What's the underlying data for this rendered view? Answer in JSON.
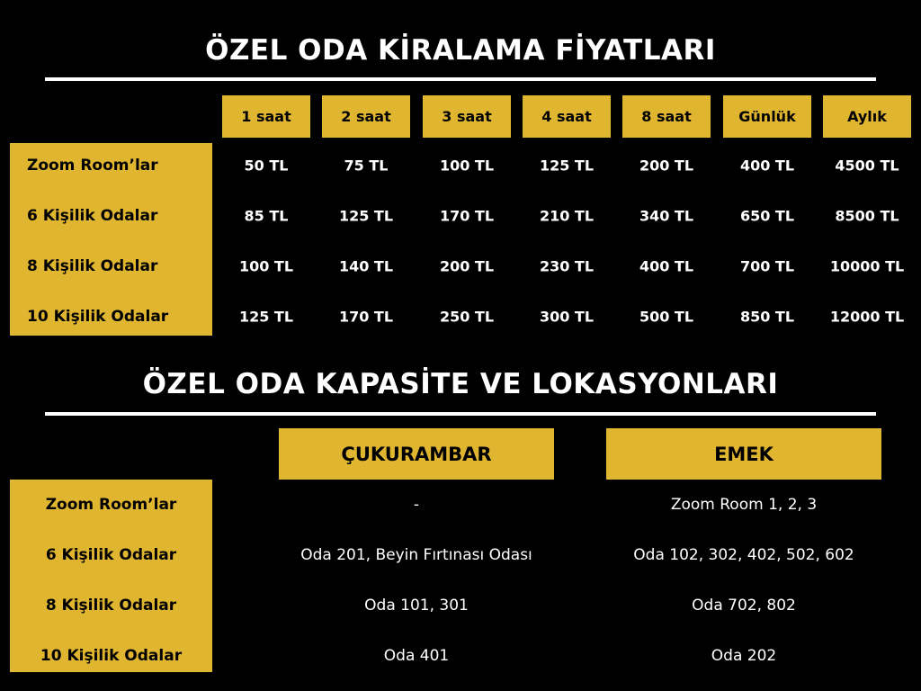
{
  "colors": {
    "accent": "#E0B52F",
    "background": "#000000",
    "text": "#ffffff"
  },
  "pricing": {
    "title": "ÖZEL ODA KİRALAMA FİYATLARI",
    "columns": [
      "1 saat",
      "2 saat",
      "3 saat",
      "4 saat",
      "8 saat",
      "Günlük",
      "Aylık"
    ],
    "rows": [
      {
        "label": "Zoom Room’lar",
        "values": [
          "50 TL",
          "75 TL",
          "100 TL",
          "125 TL",
          "200 TL",
          "400 TL",
          "4500 TL"
        ]
      },
      {
        "label": "6 Kişilik Odalar",
        "values": [
          "85 TL",
          "125 TL",
          "170 TL",
          "210 TL",
          "340 TL",
          "650 TL",
          "8500 TL"
        ]
      },
      {
        "label": "8 Kişilik Odalar",
        "values": [
          "100 TL",
          "140 TL",
          "200 TL",
          "230 TL",
          "400 TL",
          "700 TL",
          "10000 TL"
        ]
      },
      {
        "label": "10 Kişilik Odalar",
        "values": [
          "125 TL",
          "170 TL",
          "250 TL",
          "300 TL",
          "500 TL",
          "850 TL",
          "12000 TL"
        ]
      }
    ]
  },
  "locations": {
    "title": "ÖZEL ODA KAPASİTE VE LOKASYONLARI",
    "columns": [
      "ÇUKURAMBAR",
      "EMEK"
    ],
    "rows": [
      {
        "label": "Zoom Room’lar",
        "values": [
          "-",
          "Zoom Room 1, 2, 3"
        ]
      },
      {
        "label": "6 Kişilik Odalar",
        "values": [
          "Oda 201, Beyin Fırtınası Odası",
          "Oda 102, 302, 402, 502, 602"
        ]
      },
      {
        "label": "8 Kişilik Odalar",
        "values": [
          "Oda 101, 301",
          "Oda 702, 802"
        ]
      },
      {
        "label": "10 Kişilik Odalar",
        "values": [
          "Oda 401",
          "Oda 202"
        ]
      }
    ]
  }
}
